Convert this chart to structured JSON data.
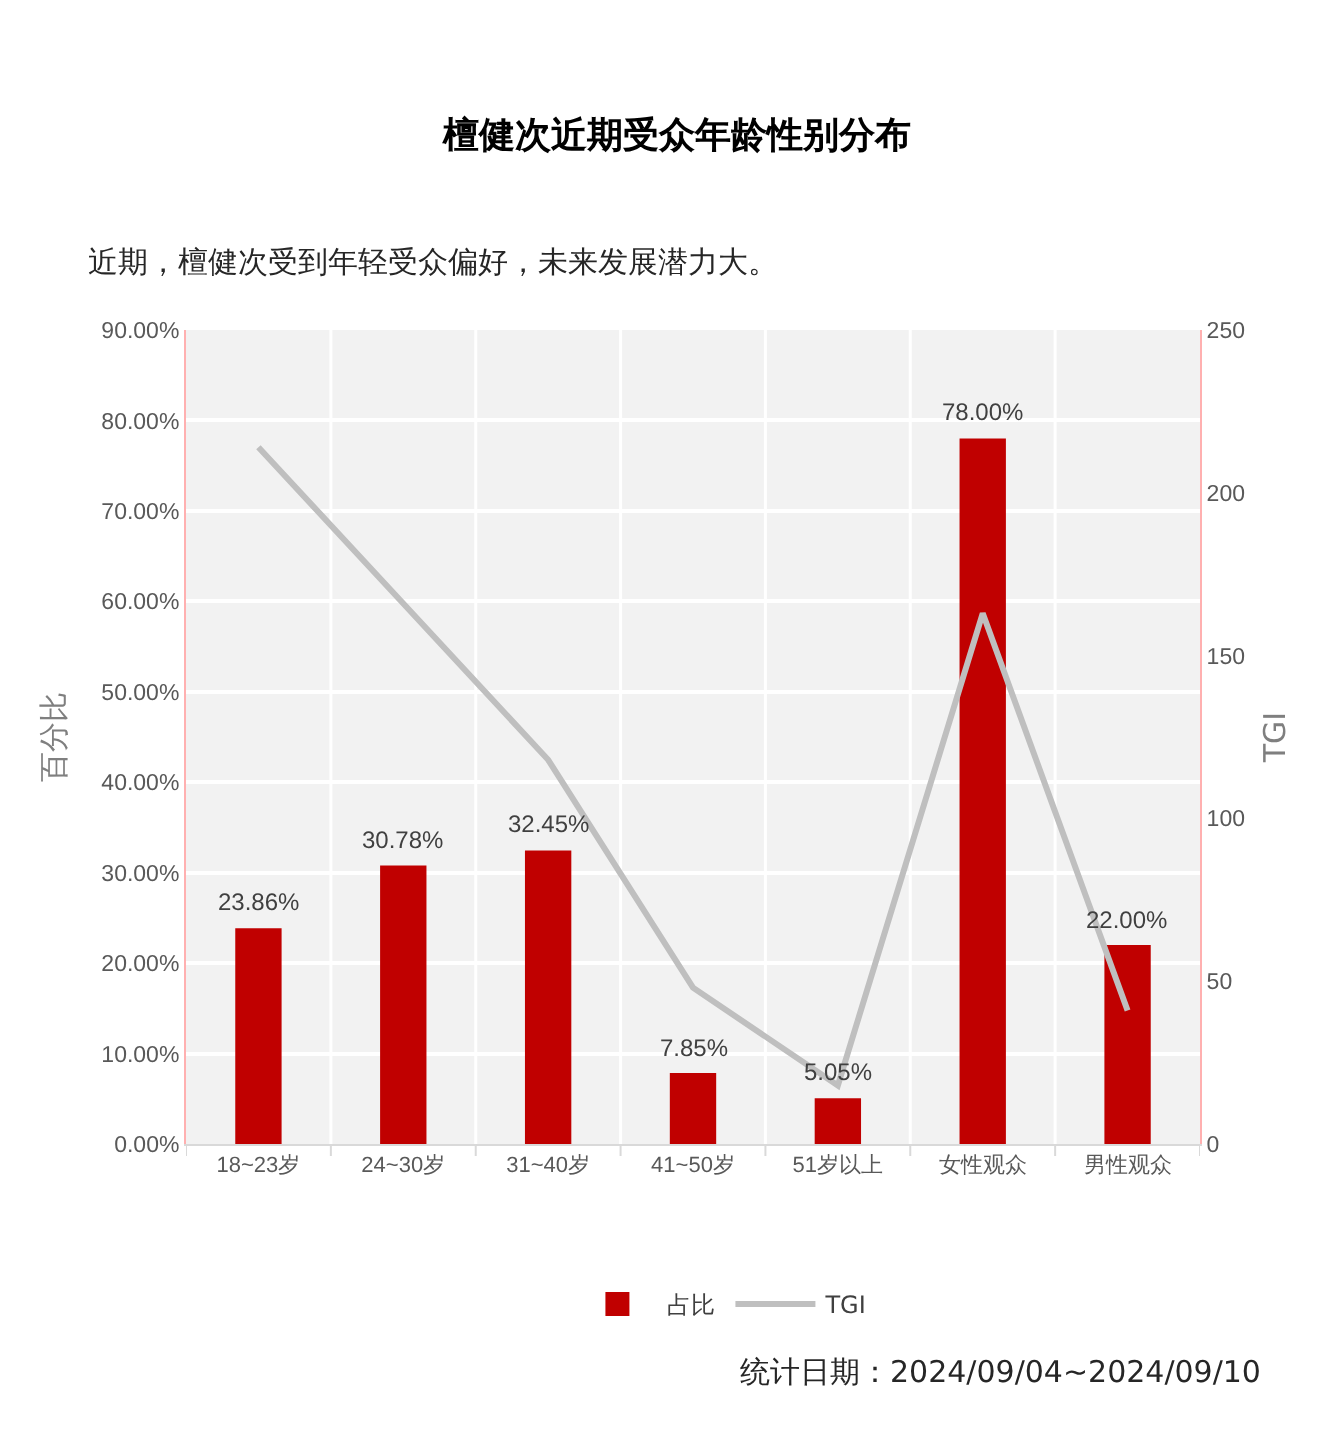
{
  "chart_data": {
    "type": "bar",
    "title": "檀健次近期受众年龄性别分布",
    "subtitle": "近期，檀健次受到年轻受众偏好，未来发展潜力大。",
    "ylabel": "百分比",
    "y2label": "TGI",
    "categories": [
      "18~23岁",
      "24~30岁",
      "31~40岁",
      "41~50岁",
      "51岁以上",
      "女性观众",
      "男性观众"
    ],
    "series": [
      {
        "name": "占比",
        "color": "#c00000",
        "values": [
          23.86,
          30.78,
          32.45,
          7.85,
          5.05,
          78.0,
          22.0
        ],
        "value_labels": [
          "23.86%",
          "30.78%",
          "32.45%",
          "7.85%",
          "5.05%",
          "78.00%",
          "22.00%"
        ]
      },
      {
        "name": "TGI",
        "type": "line",
        "axis": "y2",
        "color": "#bfbfbf",
        "values": [
          214,
          166,
          118,
          48,
          18,
          163,
          41
        ]
      }
    ],
    "ylim": [
      0,
      90
    ],
    "yticks": [
      {
        "value": 0,
        "label": "0.00%"
      },
      {
        "value": 10,
        "label": "10.00%"
      },
      {
        "value": 20,
        "label": "20.00%"
      },
      {
        "value": 30,
        "label": "30.00%"
      },
      {
        "value": 40,
        "label": "40.00%"
      },
      {
        "value": 50,
        "label": "50.00%"
      },
      {
        "value": 60,
        "label": "60.00%"
      },
      {
        "value": 70,
        "label": "70.00%"
      },
      {
        "value": 80,
        "label": "80.00%"
      },
      {
        "value": 90,
        "label": "90.00%"
      }
    ],
    "y2lim": [
      0,
      250
    ],
    "y2ticks": [
      0,
      50,
      100,
      150,
      200,
      250
    ],
    "grid": true,
    "legend": "bottom",
    "line_style": "solid",
    "annotations": [
      "统计日期：2024/09/04~2024/09/10"
    ]
  }
}
